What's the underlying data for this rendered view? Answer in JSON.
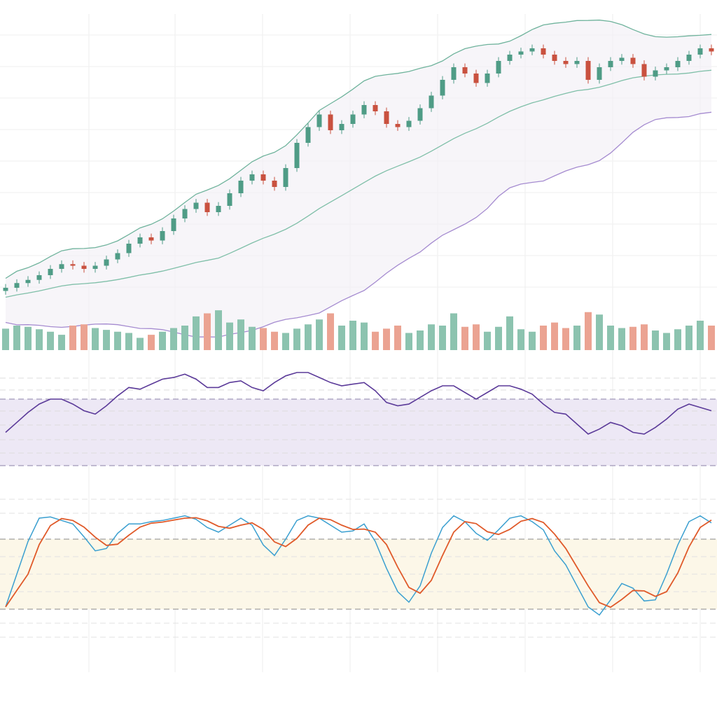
{
  "chart_data": [
    {
      "type": "candlestick",
      "title": "",
      "xlabel": "",
      "ylabel": "",
      "ylim": [
        100,
        180
      ],
      "grid": true,
      "overlays": [
        "bollinger-upper",
        "bollinger-middle",
        "bollinger-lower"
      ],
      "bollinger_period": 20,
      "close": [
        102,
        103.5,
        104.5,
        106,
        108,
        109.5,
        109,
        108,
        109,
        111,
        113,
        116,
        118,
        117,
        120,
        124,
        127,
        129,
        126,
        128,
        132,
        136,
        138,
        136,
        134,
        140,
        148,
        153,
        157,
        152,
        154,
        157,
        160,
        158,
        154,
        153,
        155,
        159,
        163,
        168,
        172,
        170,
        167,
        170,
        174,
        176,
        177,
        178,
        176,
        174,
        173,
        174,
        168,
        172,
        174,
        175,
        173,
        169,
        171,
        172,
        174,
        176,
        178,
        177
      ],
      "wick": 1.2,
      "colors": {
        "up": "#4f9c86",
        "down": "#c9513f",
        "band_upper": "#6fb39c",
        "band_middle": "#7fbfa8",
        "band_lower": "#a58bd0"
      }
    },
    {
      "type": "bar",
      "name": "volume",
      "ylim": [
        0,
        80
      ],
      "values": [
        35,
        40,
        38,
        34,
        30,
        25,
        40,
        42,
        36,
        33,
        30,
        28,
        20,
        25,
        30,
        36,
        40,
        55,
        60,
        65,
        45,
        50,
        38,
        36,
        30,
        28,
        35,
        42,
        50,
        60,
        40,
        48,
        45,
        30,
        35,
        40,
        28,
        32,
        42,
        40,
        60,
        38,
        42,
        30,
        38,
        55,
        34,
        30,
        40,
        45,
        36,
        40,
        62,
        58,
        40,
        36,
        38,
        42,
        32,
        28,
        34,
        40,
        48,
        40
      ],
      "colors": {
        "up": "#8cc3af",
        "down": "#eba392"
      }
    },
    {
      "type": "line",
      "name": "rsi",
      "ylim": [
        0,
        100
      ],
      "band": [
        30,
        70
      ],
      "values": [
        50,
        56,
        62,
        67,
        70,
        70,
        67,
        63,
        61,
        66,
        72,
        77,
        76,
        79,
        82,
        83,
        85,
        82,
        77,
        77,
        80,
        81,
        77,
        75,
        80,
        84,
        86,
        86,
        83,
        80,
        78,
        79,
        80,
        75,
        68,
        66,
        67,
        71,
        75,
        78,
        78,
        74,
        70,
        74,
        78,
        78,
        76,
        73,
        67,
        62,
        61,
        55,
        49,
        52,
        56,
        54,
        50,
        49,
        53,
        58,
        64,
        67,
        65,
        63
      ],
      "colors": {
        "line": "#5b3a99",
        "band_fill": "#ede8f5",
        "band_line": "#8a80a8"
      }
    },
    {
      "type": "line",
      "name": "stochastic",
      "ylim": [
        0,
        100
      ],
      "band": [
        20,
        80
      ],
      "series": [
        {
          "name": "%K",
          "values": [
            22,
            50,
            78,
            98,
            99,
            96,
            93,
            82,
            70,
            72,
            85,
            93,
            93,
            95,
            96,
            98,
            100,
            97,
            90,
            86,
            92,
            98,
            92,
            75,
            66,
            80,
            96,
            100,
            98,
            92,
            86,
            87,
            93,
            78,
            55,
            35,
            26,
            40,
            68,
            90,
            100,
            95,
            85,
            79,
            88,
            98,
            100,
            95,
            88,
            70,
            58,
            40,
            22,
            15,
            28,
            42,
            38,
            27,
            28,
            50,
            75,
            95,
            100,
            94
          ],
          "color": "#3a9fd0"
        },
        {
          "name": "%D",
          "smoothing": 3,
          "color": "#e05a2a"
        }
      ],
      "colors": {
        "band_fill": "#fcf7e8",
        "band_line": "#8a8a8a"
      }
    }
  ]
}
